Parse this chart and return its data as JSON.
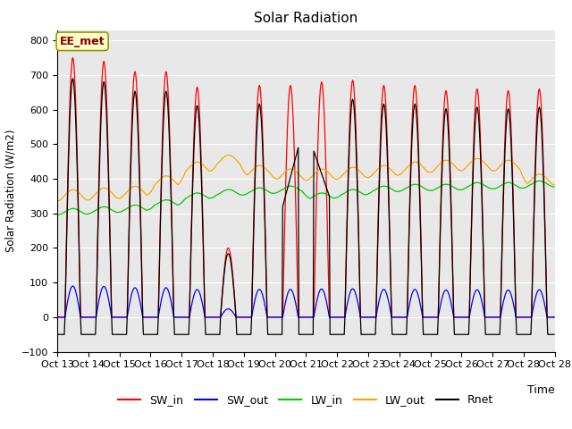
{
  "title": "Solar Radiation",
  "xlabel": "Time",
  "ylabel": "Solar Radiation (W/m2)",
  "ylim": [
    -100,
    830
  ],
  "annotation": "EE_met",
  "bg_color": "#e8e8e8",
  "colors": {
    "SW_in": "#ff0000",
    "SW_out": "#0000ff",
    "LW_in": "#00cc00",
    "LW_out": "#ffa500",
    "Rnet": "#000000"
  },
  "tick_labels": [
    "Oct 13",
    "Oct 14",
    "Oct 15",
    "Oct 16",
    "Oct 17",
    "Oct 18",
    "Oct 19",
    "Oct 20",
    "Oct 21",
    "Oct 22",
    "Oct 23",
    "Oct 24",
    "Oct 25",
    "Oct 26",
    "Oct 27",
    "Oct 28",
    "Oct 28"
  ],
  "n_days": 16,
  "pts_per_day": 48,
  "peak_SW_in": [
    750,
    740,
    710,
    710,
    665,
    200,
    670,
    670,
    680,
    685,
    670,
    670,
    655,
    660,
    655,
    660
  ],
  "lw_in_base": [
    305,
    310,
    315,
    330,
    350,
    360,
    365,
    370,
    350,
    360,
    370,
    375,
    375,
    380,
    380,
    385
  ],
  "lw_out_base": [
    350,
    355,
    360,
    390,
    430,
    450,
    420,
    410,
    410,
    415,
    420,
    430,
    435,
    440,
    435,
    395
  ]
}
